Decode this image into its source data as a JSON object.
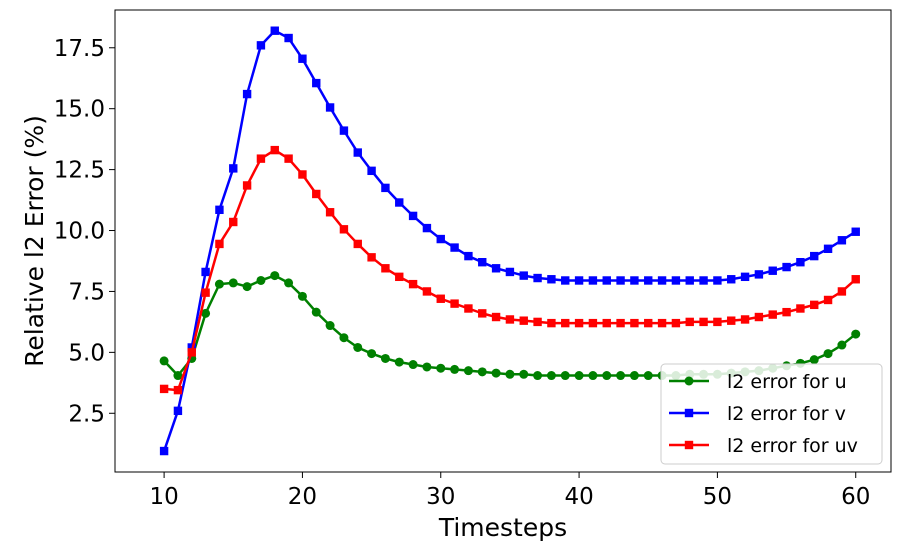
{
  "chart_data": {
    "type": "line",
    "title": "",
    "xlabel": "Timesteps",
    "ylabel": "Relative l2 Error (%)",
    "xlim": [
      6.45,
      62.55
    ],
    "ylim": [
      0.09,
      19.05
    ],
    "xticks": [
      10,
      20,
      30,
      40,
      50,
      60
    ],
    "xtick_labels": [
      "10",
      "20",
      "30",
      "40",
      "50",
      "60"
    ],
    "yticks": [
      2.5,
      5.0,
      7.5,
      10.0,
      12.5,
      15.0,
      17.5
    ],
    "ytick_labels": [
      "2.5",
      "5.0",
      "7.5",
      "10.0",
      "12.5",
      "15.0",
      "17.5"
    ],
    "legend_position": "lower-right",
    "x": [
      10,
      11,
      12,
      13,
      14,
      15,
      16,
      17,
      18,
      19,
      20,
      21,
      22,
      23,
      24,
      25,
      26,
      27,
      28,
      29,
      30,
      31,
      32,
      33,
      34,
      35,
      36,
      37,
      38,
      39,
      40,
      41,
      42,
      43,
      44,
      45,
      46,
      47,
      48,
      49,
      50,
      51,
      52,
      53,
      54,
      55,
      56,
      57,
      58,
      59,
      60
    ],
    "series": [
      {
        "name": "l2 error for u",
        "color": "#008000",
        "marker": "circle",
        "values": [
          4.65,
          4.05,
          4.75,
          6.6,
          7.8,
          7.85,
          7.7,
          7.95,
          8.15,
          7.85,
          7.3,
          6.65,
          6.1,
          5.6,
          5.2,
          4.95,
          4.75,
          4.6,
          4.5,
          4.4,
          4.35,
          4.3,
          4.25,
          4.2,
          4.15,
          4.1,
          4.1,
          4.05,
          4.05,
          4.05,
          4.05,
          4.05,
          4.05,
          4.05,
          4.05,
          4.05,
          4.05,
          4.05,
          4.1,
          4.1,
          4.1,
          4.15,
          4.2,
          4.25,
          4.35,
          4.45,
          4.55,
          4.7,
          4.95,
          5.3,
          5.75
        ]
      },
      {
        "name": "l2 error for v",
        "color": "#0000ff",
        "marker": "square",
        "values": [
          0.95,
          2.6,
          5.2,
          8.3,
          10.85,
          12.55,
          15.6,
          17.6,
          18.2,
          17.9,
          17.05,
          16.05,
          15.05,
          14.1,
          13.2,
          12.45,
          11.75,
          11.15,
          10.6,
          10.1,
          9.65,
          9.3,
          8.95,
          8.7,
          8.45,
          8.3,
          8.15,
          8.05,
          8.0,
          7.95,
          7.95,
          7.95,
          7.95,
          7.95,
          7.95,
          7.95,
          7.95,
          7.95,
          7.95,
          7.95,
          7.95,
          8.0,
          8.1,
          8.2,
          8.35,
          8.5,
          8.7,
          8.95,
          9.25,
          9.6,
          9.95
        ]
      },
      {
        "name": "l2 error for uv",
        "color": "#ff0000",
        "marker": "square",
        "values": [
          3.5,
          3.45,
          5.0,
          7.45,
          9.45,
          10.35,
          11.85,
          12.95,
          13.3,
          12.95,
          12.3,
          11.5,
          10.75,
          10.05,
          9.45,
          8.9,
          8.45,
          8.1,
          7.8,
          7.5,
          7.2,
          7.0,
          6.8,
          6.6,
          6.45,
          6.35,
          6.3,
          6.25,
          6.2,
          6.2,
          6.2,
          6.2,
          6.2,
          6.2,
          6.2,
          6.2,
          6.2,
          6.2,
          6.25,
          6.25,
          6.25,
          6.3,
          6.35,
          6.45,
          6.55,
          6.65,
          6.8,
          6.95,
          7.15,
          7.5,
          8.0
        ]
      }
    ]
  }
}
